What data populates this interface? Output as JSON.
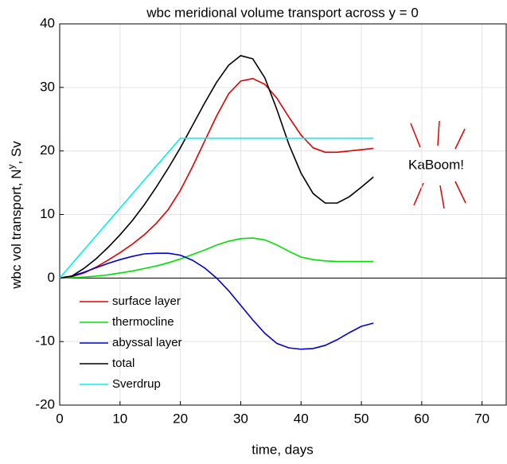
{
  "chart_data": {
    "type": "line",
    "title": "wbc meridional  volume transport across y = 0",
    "xlabel": "time, days",
    "ylabel": "wbc vol transport, N",
    "ylabel_superscript": "y",
    "ylabel_suffix": ", Sv",
    "annotation": "KaBoom!",
    "x": [
      0,
      2,
      4,
      6,
      8,
      10,
      12,
      14,
      16,
      18,
      20,
      22,
      24,
      26,
      28,
      30,
      32,
      34,
      36,
      38,
      40,
      42,
      44,
      46,
      48,
      50,
      52
    ],
    "series": [
      {
        "name": "surface layer",
        "color": "#e00000",
        "values": [
          0,
          0.2,
          0.8,
          1.7,
          2.8,
          4,
          5.3,
          6.8,
          8.6,
          10.8,
          13.8,
          17.5,
          21.5,
          25.5,
          29,
          31,
          31.4,
          30.5,
          28.3,
          25.3,
          22.5,
          20.5,
          19.8,
          19.8,
          20,
          20.2,
          20.4
        ]
      },
      {
        "name": "thermocline",
        "color": "#00e000",
        "values": [
          0,
          0.05,
          0.15,
          0.3,
          0.5,
          0.8,
          1.1,
          1.5,
          1.9,
          2.4,
          3,
          3.7,
          4.4,
          5.2,
          5.8,
          6.2,
          6.3,
          6,
          5.2,
          4.2,
          3.3,
          2.9,
          2.7,
          2.6,
          2.6,
          2.6,
          2.6
        ]
      },
      {
        "name": "abyssal layer",
        "color": "#0000d0",
        "values": [
          0,
          0.3,
          0.9,
          1.6,
          2.3,
          2.9,
          3.4,
          3.8,
          3.9,
          3.9,
          3.6,
          2.8,
          1.6,
          0,
          -2,
          -4.3,
          -6.6,
          -8.7,
          -10.3,
          -11,
          -11.2,
          -11.1,
          -10.6,
          -9.7,
          -8.6,
          -7.6,
          -7.1
        ]
      },
      {
        "name": "total",
        "color": "#000000",
        "values": [
          0,
          0.3,
          1.5,
          3,
          4.8,
          6.8,
          9,
          11.5,
          14.3,
          17.3,
          20.5,
          24,
          27.5,
          30.8,
          33.5,
          35,
          34.5,
          31.5,
          26.5,
          21,
          16.5,
          13.3,
          11.8,
          11.8,
          12.8,
          14.3,
          15.9
        ]
      },
      {
        "name": "Sverdrup",
        "color": "#00f0f0",
        "values": [
          0,
          2.2,
          4.4,
          6.6,
          8.8,
          11,
          13.2,
          15.4,
          17.6,
          19.8,
          22,
          22,
          22,
          22,
          22,
          22,
          22,
          22,
          22,
          22,
          22,
          22,
          22,
          22,
          22,
          22,
          22
        ]
      }
    ],
    "xlim": [
      0,
      74
    ],
    "xticks": [
      0,
      10,
      20,
      30,
      40,
      50,
      60,
      70
    ],
    "ylim": [
      -20,
      40
    ],
    "yticks": [
      -20,
      -10,
      0,
      10,
      20,
      30,
      40
    ],
    "grid": true,
    "legend": "southwest"
  }
}
